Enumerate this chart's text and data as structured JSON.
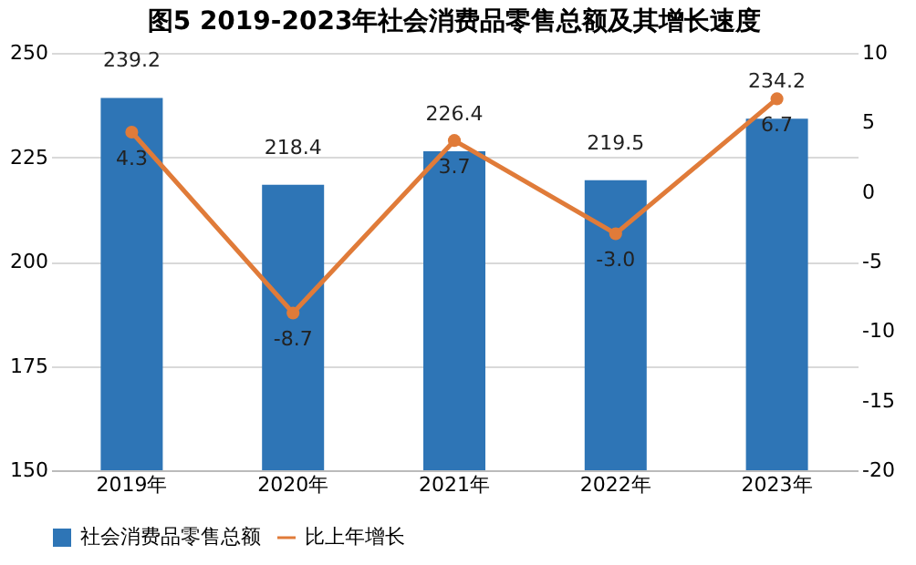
{
  "chart_data": {
    "type": "bar",
    "title": "图5    2019-2023年社会消费品零售总额及其增长速度",
    "categories": [
      "2019年",
      "2020年",
      "2021年",
      "2022年",
      "2023年"
    ],
    "series": [
      {
        "name": "社会消费品零售总额",
        "type": "bar",
        "color": "#2e75b6",
        "values": [
          239.2,
          218.4,
          226.4,
          219.5,
          234.2
        ],
        "value_labels": [
          "239.2",
          "218.4",
          "226.4",
          "219.5",
          "234.2"
        ]
      },
      {
        "name": "比上年增长",
        "type": "line",
        "axis": "y2",
        "color": "#e07b39",
        "values": [
          4.3,
          -8.7,
          3.7,
          -3.0,
          6.7
        ],
        "value_labels": [
          "4.3",
          "-8.7",
          "3.7",
          "-3.0",
          "6.7"
        ]
      }
    ],
    "ylim": [
      150,
      250
    ],
    "yticks": [
      150,
      175,
      200,
      225,
      250
    ],
    "y2lim": [
      -20,
      10
    ],
    "y2ticks": [
      -20,
      -15,
      -10,
      -5,
      0,
      5,
      10
    ],
    "grid": "y",
    "legend": "bottom",
    "marker": "circle",
    "line_style": "solid"
  }
}
